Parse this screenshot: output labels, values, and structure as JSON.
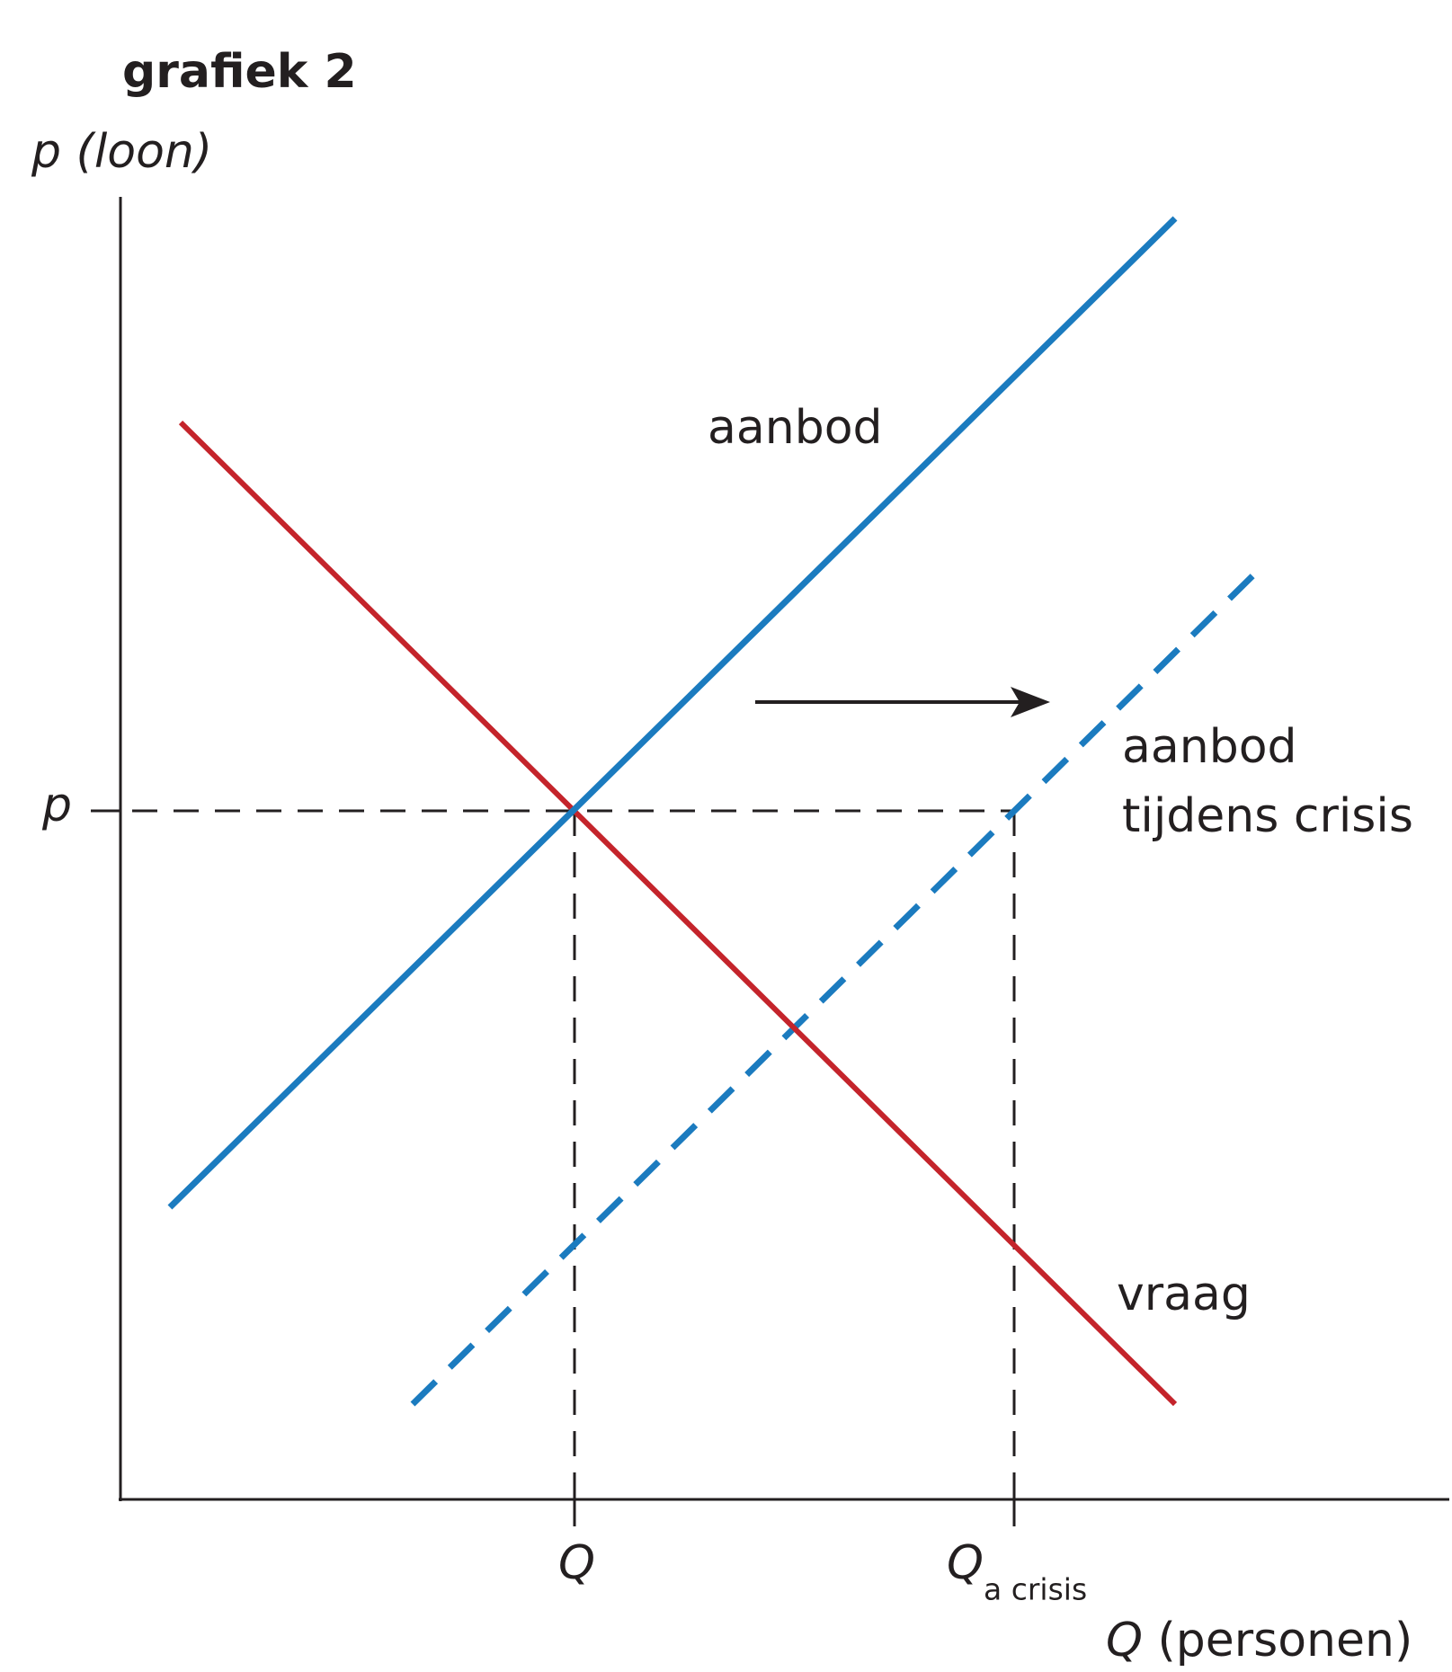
{
  "title": "grafiek 2",
  "y_axis": {
    "symbol": "p",
    "unit": "(loon)"
  },
  "x_axis": {
    "symbol": "Q",
    "unit": "(personen)"
  },
  "ticks": {
    "p": "p",
    "q": "Q",
    "q_crisis": {
      "symbol": "Q",
      "subscript": "a crisis"
    }
  },
  "curves": {
    "supply": "aanbod",
    "supply_crisis": [
      "aanbod",
      "tijdens crisis"
    ],
    "demand": "vraag"
  }
}
